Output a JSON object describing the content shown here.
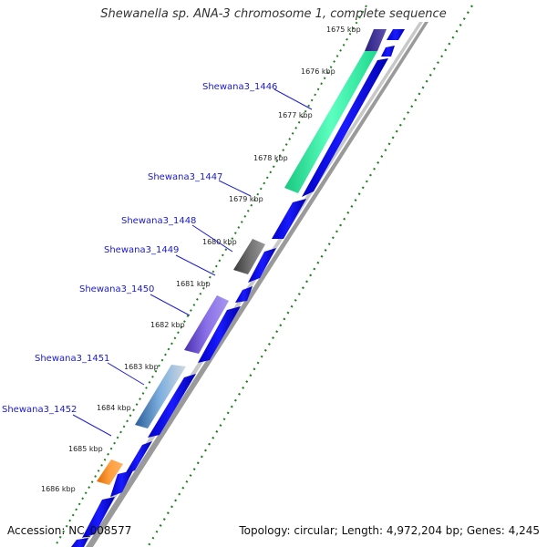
{
  "title": "Shewanella sp. ANA-3 chromosome 1, complete sequence",
  "footer": {
    "accession": "Accession: NC_008577",
    "summary": "Topology: circular; Length: 4,972,204 bp; Genes: 4,245"
  },
  "colors": {
    "forward_cds": "#0a0adc",
    "backbone": "#8a8a8a",
    "dots": "#1f7f1f",
    "label_line": "#2222cc"
  },
  "kbp_ticks": [
    "1675 kbp",
    "1676 kbp",
    "1677 kbp",
    "1678 kbp",
    "1679 kbp",
    "1680 kbp",
    "1681 kbp",
    "1682 kbp",
    "1683 kbp",
    "1684 kbp",
    "1685 kbp",
    "1686 kbp"
  ],
  "genes": [
    {
      "label": "Shewana3_1446",
      "color": "#2ee8a0"
    },
    {
      "label": "Shewana3_1447",
      "color": "#2ee8a0"
    },
    {
      "label": "Shewana3_1448",
      "color": "#5a5a5a"
    },
    {
      "label": "Shewana3_1449",
      "color": "#5a5a5a"
    },
    {
      "label": "Shewana3_1450",
      "color": "#6a4fd0"
    },
    {
      "label": "Shewana3_1451",
      "color": "#3a78b8"
    },
    {
      "label": "Shewana3_1452",
      "color": "#f08010"
    }
  ]
}
